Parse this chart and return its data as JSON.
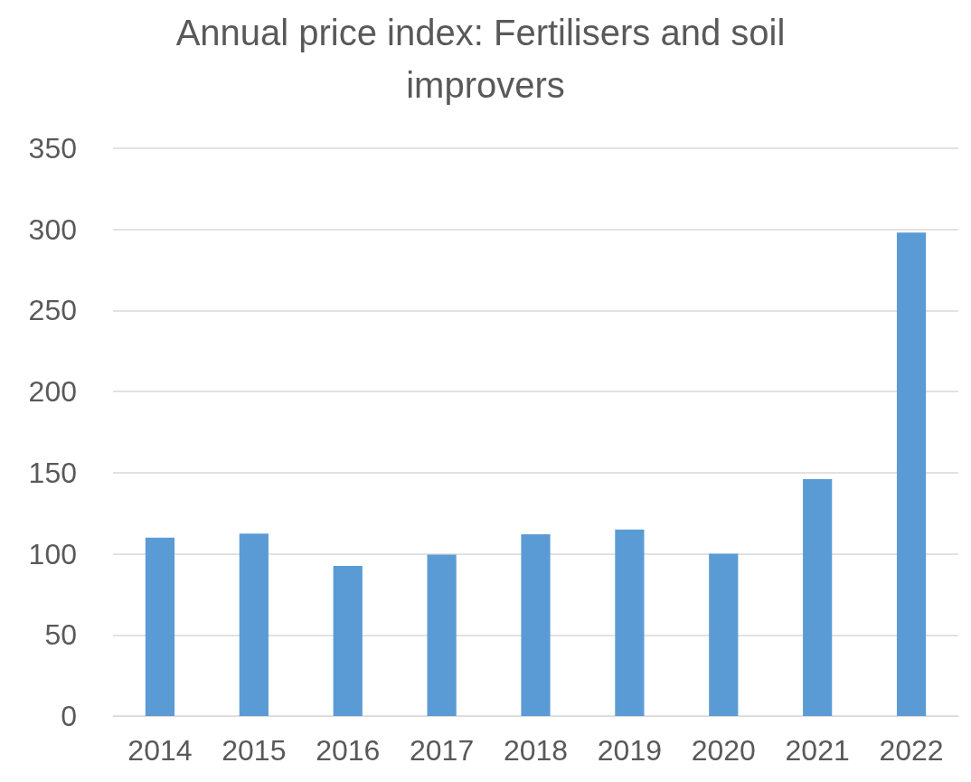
{
  "chart_data": {
    "type": "bar",
    "title": "Annual price index: Fertilisers and soil improvers",
    "categories": [
      "2014",
      "2015",
      "2016",
      "2017",
      "2018",
      "2019",
      "2020",
      "2021",
      "2022"
    ],
    "values": [
      110,
      112.5,
      92.5,
      99.5,
      112,
      115,
      100,
      146,
      298
    ],
    "color": "#5b9bd5",
    "ylim": [
      0,
      350
    ],
    "yticks": [
      0,
      50,
      100,
      150,
      200,
      250,
      300,
      350
    ],
    "grid": "y"
  }
}
